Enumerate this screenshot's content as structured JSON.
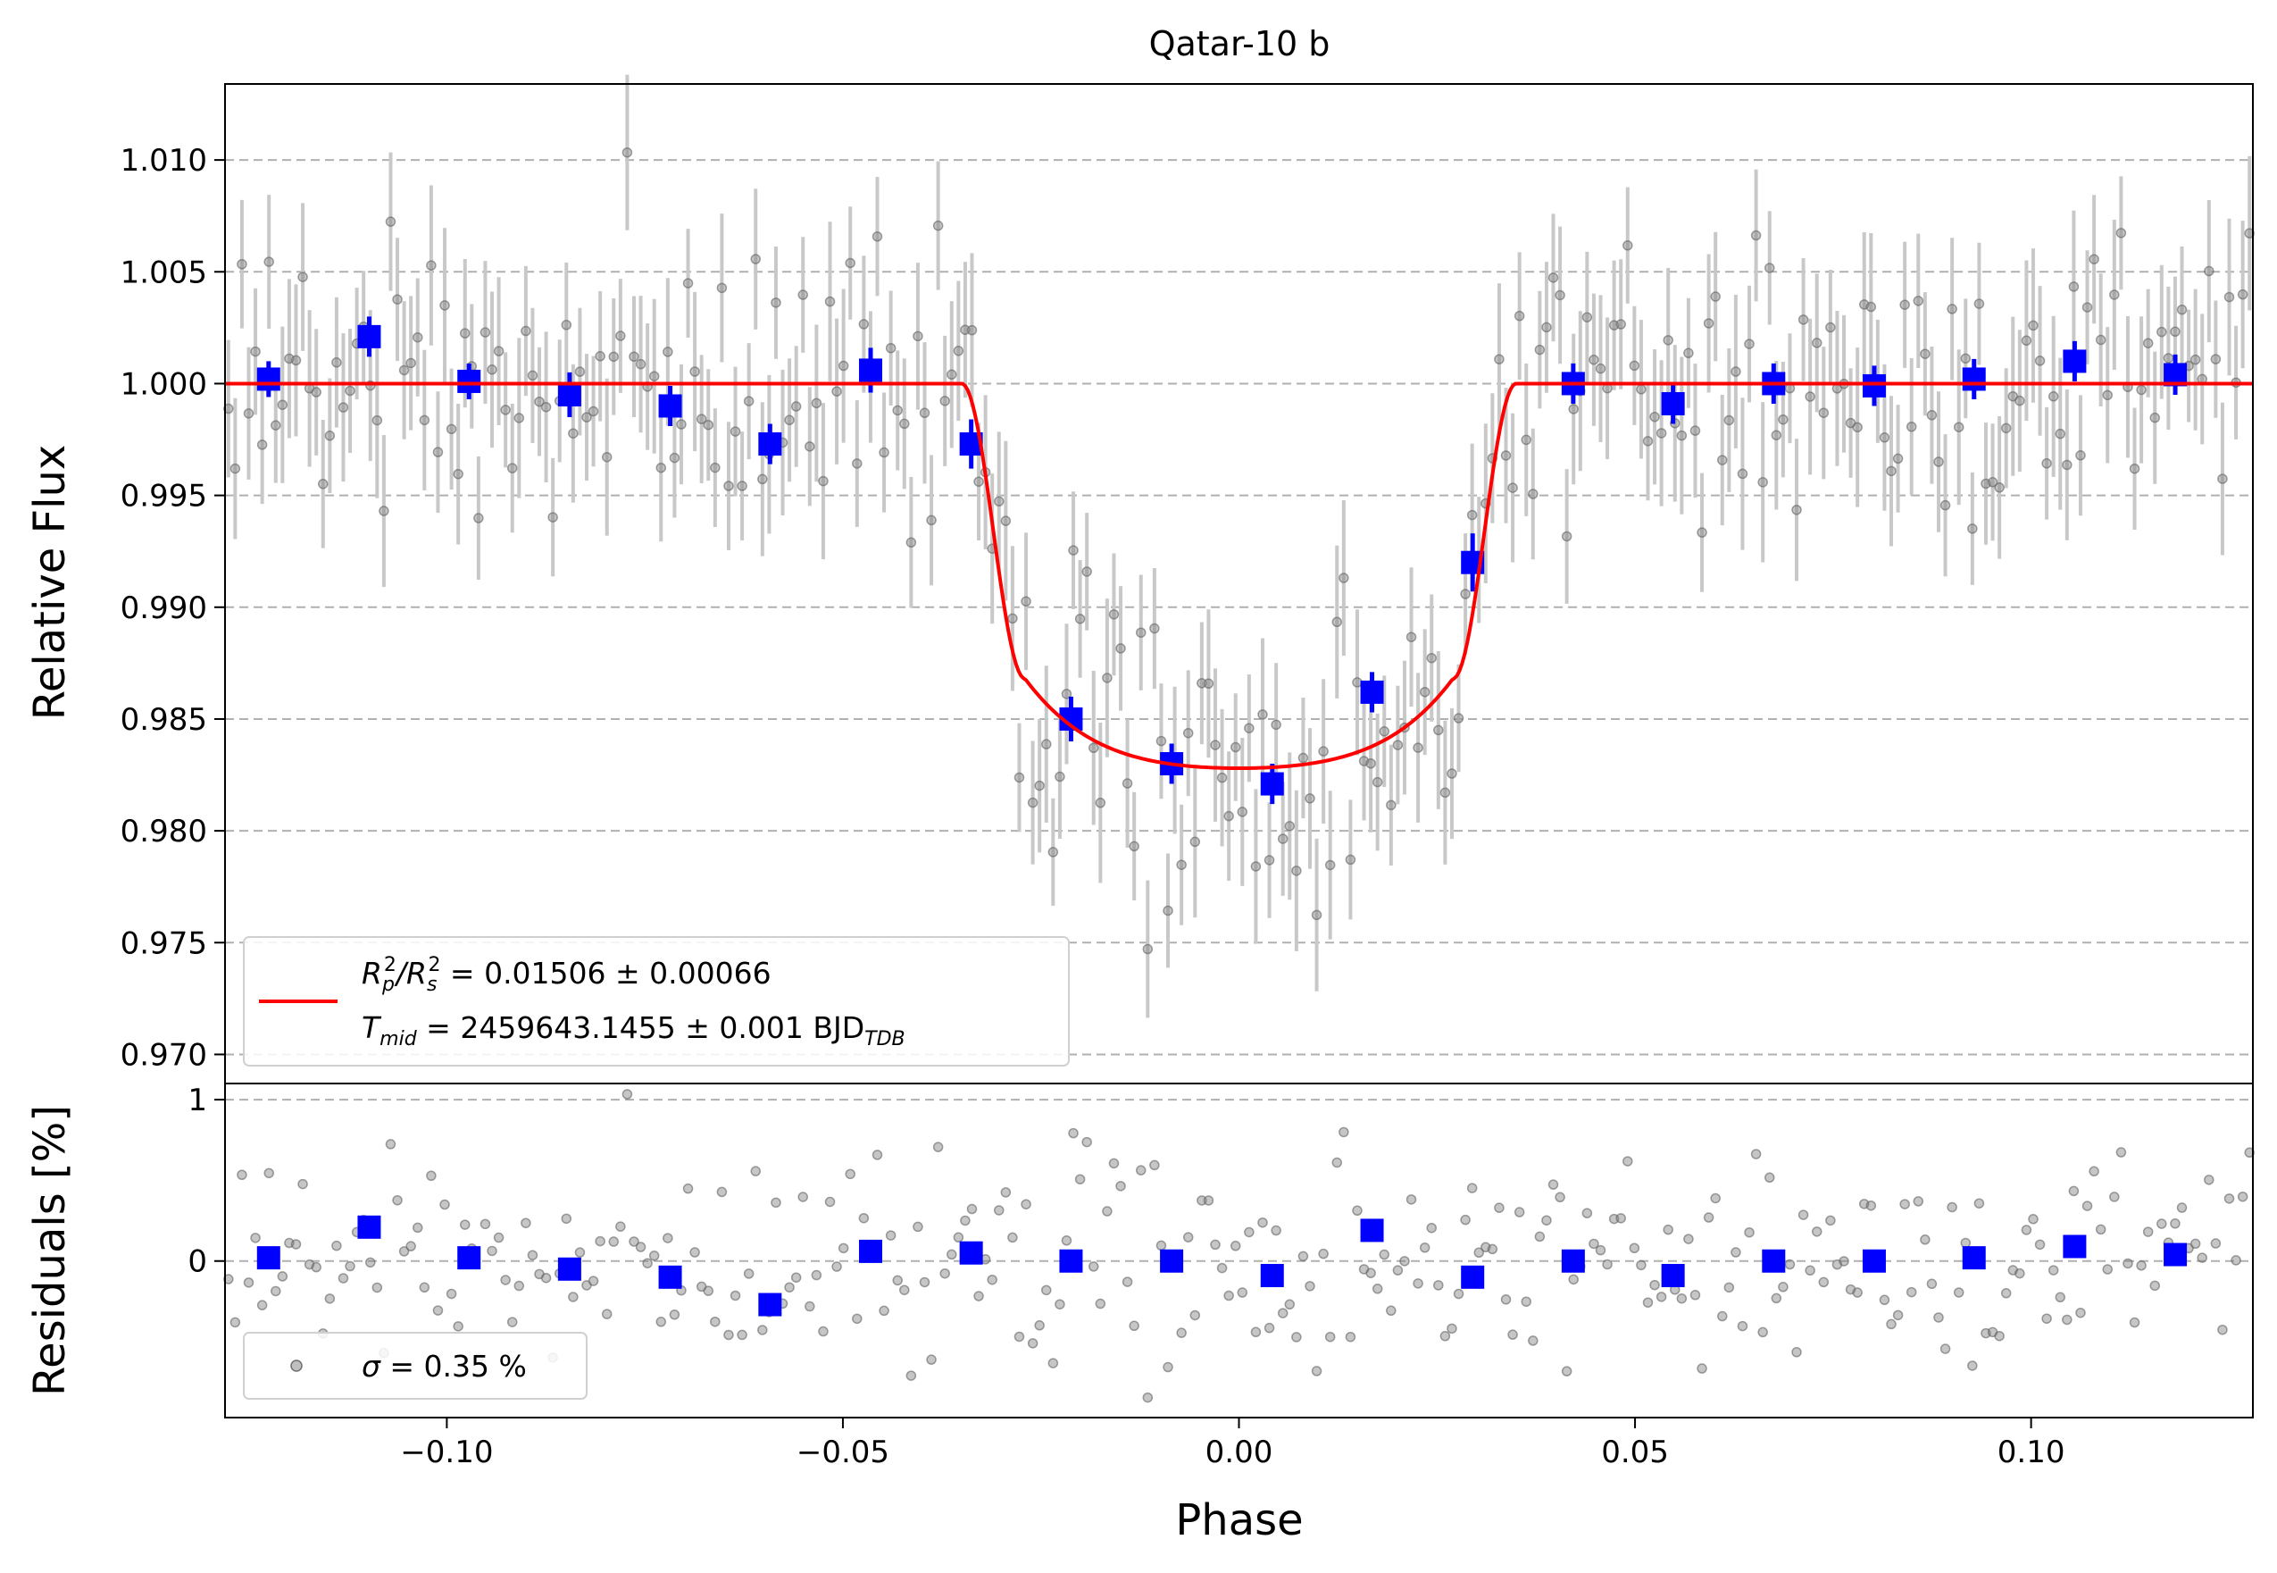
{
  "chart_data": {
    "type": "scatter",
    "title": "Qatar-10 b",
    "xlabel": "Phase",
    "xlim": [
      -0.128,
      0.128
    ],
    "xticks": [
      -0.1,
      -0.05,
      0.0,
      0.05,
      0.1
    ],
    "xtick_labels": [
      "−0.10",
      "−0.05",
      "0.00",
      "0.05",
      "0.10"
    ],
    "colors": {
      "raw": "#808080",
      "errorbar": "#c8c8c8",
      "binned": "#0000ff",
      "model": "#ff0000",
      "grid": "#b0b0b0"
    },
    "top_panel": {
      "ylabel": "Relative Flux",
      "ylim": [
        0.9687,
        1.0134
      ],
      "yticks": [
        0.97,
        0.975,
        0.98,
        0.985,
        0.99,
        0.995,
        1.0,
        1.005,
        1.01
      ],
      "ytick_labels": [
        "0.970",
        "0.975",
        "0.980",
        "0.985",
        "0.990",
        "0.995",
        "1.000",
        "1.005",
        "1.010"
      ],
      "grid": true,
      "legend": {
        "placement": "lower-left",
        "line1_a": "R",
        "line1_sub_p": "p",
        "line1_sup": "2",
        "line1_div": "/R",
        "line1_sub_s": "s",
        "line1_sup2": "2",
        "line1_rest": " = 0.01506 ± 0.00066",
        "line2_a": "T",
        "line2_sub": "mid",
        "line2_rest": " = 2459643.1455 ± 0.001 BJD",
        "line2_sub2": "TDB"
      },
      "model": {
        "name": "transit model",
        "depth": 0.01506,
        "t14_half": 0.035,
        "t23_half": 0.027,
        "bottom": 0.9828
      },
      "binned": {
        "x": [
          -0.1225,
          -0.1098,
          -0.0972,
          -0.0845,
          -0.0718,
          -0.0592,
          -0.0465,
          -0.0338,
          -0.0212,
          -0.0085,
          0.0042,
          0.0168,
          0.0295,
          0.0422,
          0.0548,
          0.0675,
          0.0802,
          0.0928,
          0.1055,
          0.1182
        ],
        "y": [
          1.0002,
          1.0021,
          1.0001,
          0.9995,
          0.999,
          0.9973,
          1.0006,
          0.9973,
          0.985,
          0.983,
          0.9821,
          0.9862,
          0.992,
          1.0,
          0.9991,
          1.0,
          0.9999,
          1.0002,
          1.001,
          1.0004
        ],
        "yerr": [
          0.0008,
          0.0009,
          0.0008,
          0.001,
          0.0009,
          0.0009,
          0.001,
          0.0011,
          0.001,
          0.0009,
          0.0009,
          0.0009,
          0.0013,
          0.0009,
          0.0009,
          0.0009,
          0.0009,
          0.0009,
          0.0009,
          0.0009
        ]
      }
    },
    "bottom_panel": {
      "ylabel": "Residuals [%]",
      "ylim": [
        -0.97,
        1.1
      ],
      "yticks": [
        0,
        1
      ],
      "ytick_labels": [
        "0",
        "1"
      ],
      "grid": true,
      "legend": {
        "placement": "lower-left",
        "sigma_symbol": "σ",
        "text": " = 0.35 %"
      },
      "binned": {
        "x": [
          -0.1225,
          -0.1098,
          -0.0972,
          -0.0845,
          -0.0718,
          -0.0592,
          -0.0465,
          -0.0338,
          -0.0212,
          -0.0085,
          0.0042,
          0.0168,
          0.0295,
          0.0422,
          0.0548,
          0.0675,
          0.0802,
          0.0928,
          0.1055,
          0.1182
        ],
        "y": [
          0.02,
          0.21,
          0.02,
          -0.05,
          -0.1,
          -0.27,
          0.06,
          0.05,
          0.0,
          0.0,
          -0.09,
          0.19,
          -0.1,
          0.0,
          -0.09,
          0.0,
          0.0,
          0.02,
          0.09,
          0.04
        ]
      }
    }
  }
}
